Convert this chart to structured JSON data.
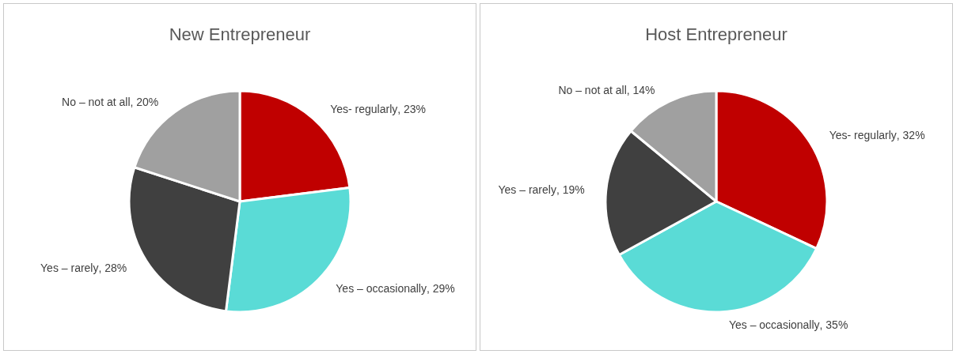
{
  "chart_data": [
    {
      "type": "pie",
      "title": "New Entrepreneur",
      "categories": [
        "Yes- regularly",
        "Yes – occasionally",
        "Yes – rarely",
        "No – not at all"
      ],
      "values": [
        23,
        29,
        28,
        20
      ],
      "value_labels": [
        ", 23%",
        ", 29%",
        ", 28%",
        ", 20%"
      ],
      "colors": [
        "#c00000",
        "#5adbd6",
        "#404040",
        "#a0a0a0"
      ],
      "legend": false
    },
    {
      "type": "pie",
      "title": "Host Entrepreneur",
      "categories": [
        "Yes- regularly",
        "Yes – occasionally",
        "Yes – rarely",
        "No – not at all"
      ],
      "values": [
        32,
        35,
        19,
        14
      ],
      "value_labels": [
        ", 32%",
        ", 35%",
        ", 19%",
        ", 14%"
      ],
      "colors": [
        "#c00000",
        "#5adbd6",
        "#404040",
        "#a0a0a0"
      ],
      "legend": false
    }
  ]
}
